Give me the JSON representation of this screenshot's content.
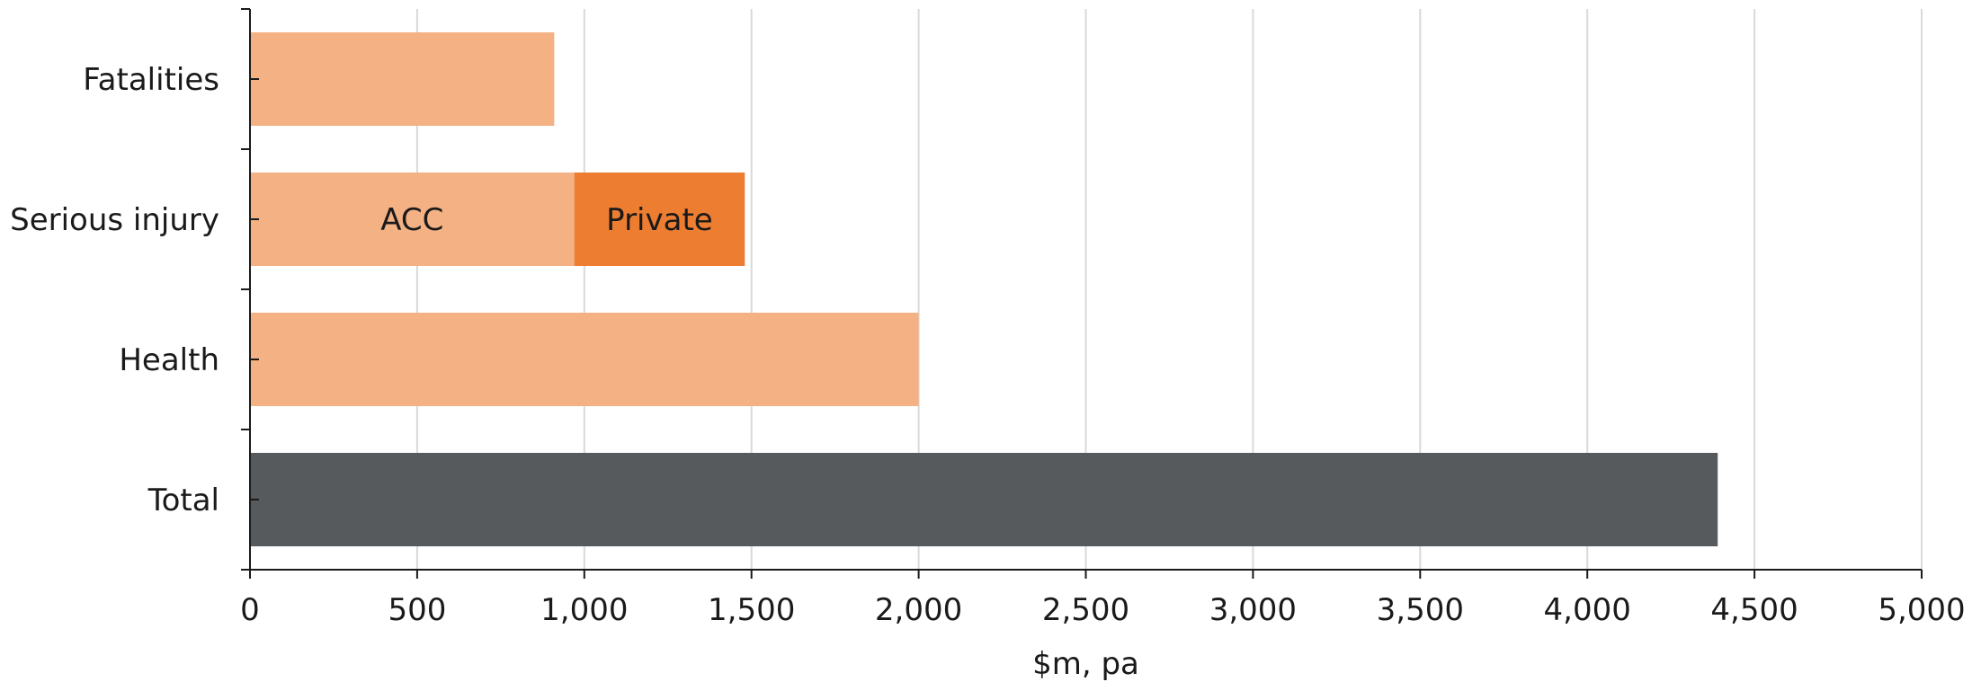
{
  "chart_data": {
    "type": "bar",
    "orientation": "horizontal",
    "stacked": true,
    "title": "",
    "xlabel": "$m, pa",
    "ylabel": "",
    "xlim": [
      0,
      5000
    ],
    "xticks": [
      0,
      500,
      1000,
      1500,
      2000,
      2500,
      3000,
      3500,
      4000,
      4500,
      5000
    ],
    "xtick_labels": [
      "0",
      "500",
      "1,000",
      "1,500",
      "2,000",
      "2,500",
      "3,000",
      "3,500",
      "4,000",
      "4,500",
      "5,000"
    ],
    "grid": "vertical",
    "categories": [
      "Fatalities",
      "Serious injury",
      "Health",
      "Total"
    ],
    "bars": [
      {
        "category": "Fatalities",
        "segments": [
          {
            "value": 910,
            "label": "",
            "color": "#f4b183"
          }
        ]
      },
      {
        "category": "Serious injury",
        "segments": [
          {
            "value": 970,
            "label": "ACC",
            "color": "#f4b183"
          },
          {
            "value": 510,
            "label": "Private",
            "color": "#ed7d31"
          }
        ]
      },
      {
        "category": "Health",
        "segments": [
          {
            "value": 2000,
            "label": "",
            "color": "#f4b183"
          }
        ]
      },
      {
        "category": "Total",
        "segments": [
          {
            "value": 4390,
            "label": "",
            "color": "#575a5c"
          }
        ]
      }
    ]
  }
}
